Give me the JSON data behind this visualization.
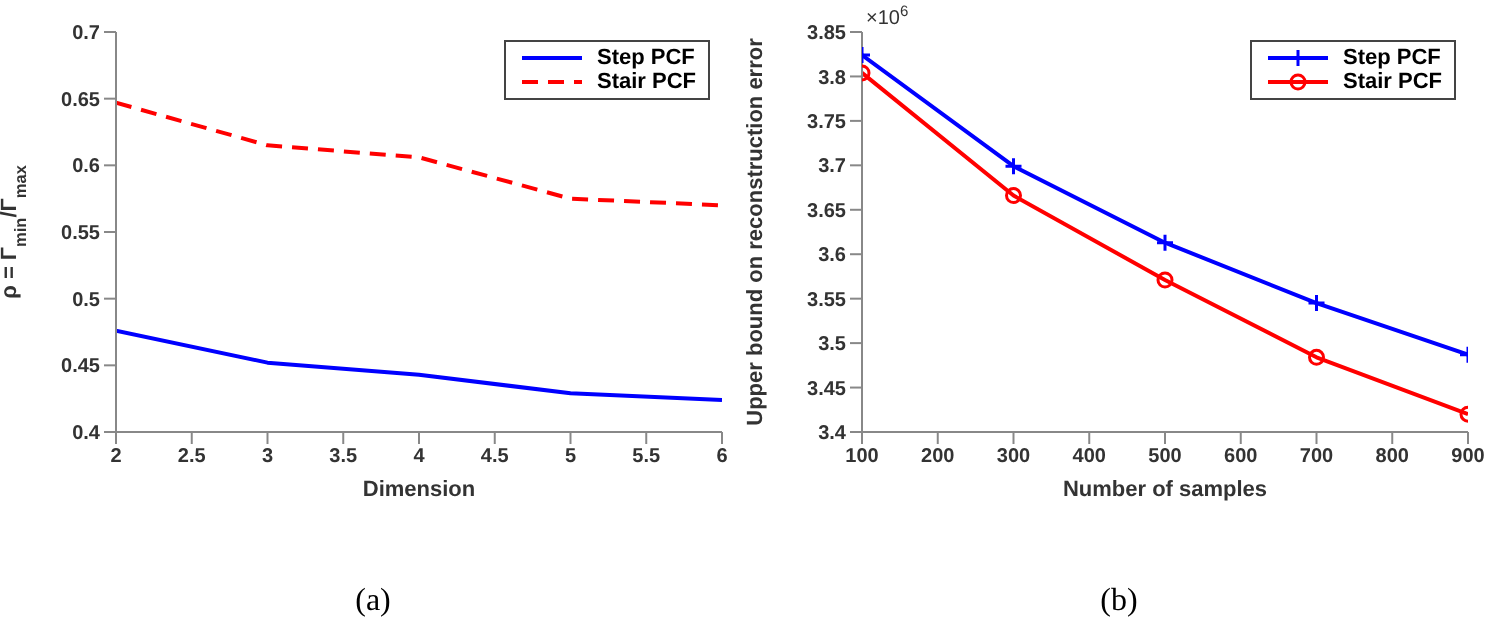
{
  "chart_data": [
    {
      "type": "line",
      "xlabel": "Dimension",
      "ylabel": "ρ = Γ$_{min}$/Γ$_{max}$",
      "x": [
        2,
        3,
        4,
        5,
        6
      ],
      "series": [
        {
          "name": "Step PCF",
          "color": "#0000ff",
          "values": [
            0.476,
            0.452,
            0.443,
            0.429,
            0.424
          ],
          "line_style": "solid",
          "marker": "none"
        },
        {
          "name": "Stair PCF",
          "color": "#ff0000",
          "values": [
            0.647,
            0.615,
            0.606,
            0.575,
            0.57
          ],
          "line_style": "dashed",
          "marker": "none"
        }
      ],
      "xlim": [
        2,
        6
      ],
      "xticks": [
        2,
        2.5,
        3,
        3.5,
        4,
        4.5,
        5,
        5.5,
        6
      ],
      "ylim": [
        0.4,
        0.7
      ],
      "yticks": [
        0.4,
        0.45,
        0.5,
        0.55,
        0.6,
        0.65,
        0.7
      ],
      "grid": false,
      "legend": "top right",
      "annotations": [
        "(a)"
      ]
    },
    {
      "type": "line",
      "xlabel": "Number of samples",
      "ylabel": "Upper bound on reconstruction error",
      "x": [
        100,
        300,
        500,
        700,
        900
      ],
      "series": [
        {
          "name": "Step PCF",
          "color": "#0000ff",
          "values": [
            3.824,
            3.699,
            3.613,
            3.545,
            3.487
          ],
          "line_style": "solid",
          "marker": "cross"
        },
        {
          "name": "Stair PCF",
          "color": "#ff0000",
          "values": [
            3.804,
            3.666,
            3.571,
            3.484,
            3.42
          ],
          "line_style": "solid",
          "marker": "circle"
        }
      ],
      "xlim": [
        100,
        900
      ],
      "xticks": [
        100,
        200,
        300,
        400,
        500,
        600,
        700,
        800,
        900
      ],
      "ylim": [
        3.4,
        3.85
      ],
      "yticks": [
        3.4,
        3.45,
        3.5,
        3.55,
        3.6,
        3.65,
        3.7,
        3.75,
        3.8,
        3.85
      ],
      "grid": false,
      "legend": "top right",
      "annotations": [
        "×10$^{6}$",
        "(b)"
      ]
    }
  ]
}
